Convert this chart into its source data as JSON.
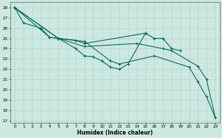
{
  "xlabel": "Humidex (Indice chaleur)",
  "background_color": "#cce8e0",
  "grid_color": "#aad4c8",
  "line_color": "#006655",
  "xlim": [
    -0.5,
    23.5
  ],
  "ylim": [
    16.8,
    28.5
  ],
  "xticks": [
    0,
    1,
    2,
    3,
    4,
    5,
    6,
    7,
    8,
    9,
    10,
    11,
    12,
    13,
    14,
    15,
    16,
    17,
    18,
    19,
    20,
    21,
    22,
    23
  ],
  "yticks": [
    17,
    18,
    19,
    20,
    21,
    22,
    23,
    24,
    25,
    26,
    27,
    28
  ],
  "s1x": [
    0,
    1,
    3,
    4,
    5,
    7,
    8,
    15,
    16,
    17,
    18,
    19
  ],
  "s1y": [
    28,
    26.5,
    26,
    25.1,
    25,
    24.8,
    24.5,
    25.5,
    25.0,
    25.0,
    24.0,
    23.8
  ],
  "s2x": [
    0,
    4,
    5,
    8,
    11,
    12,
    16,
    20,
    21,
    22,
    23
  ],
  "s2y": [
    28,
    25.1,
    25.0,
    24.7,
    22.8,
    22.5,
    23.3,
    22.2,
    20.8,
    19.3,
    17.3
  ],
  "s3x": [
    0,
    5,
    7,
    8,
    9,
    10,
    11,
    12,
    13,
    15
  ],
  "s3y": [
    28,
    25.0,
    24.0,
    23.3,
    23.2,
    22.8,
    22.2,
    22.0,
    22.5,
    25.5
  ],
  "s4x": [
    0,
    5,
    8,
    14,
    17,
    18,
    21,
    22,
    23
  ],
  "s4y": [
    28,
    25.0,
    24.2,
    24.5,
    24.0,
    23.8,
    22.3,
    21.0,
    17.3
  ]
}
